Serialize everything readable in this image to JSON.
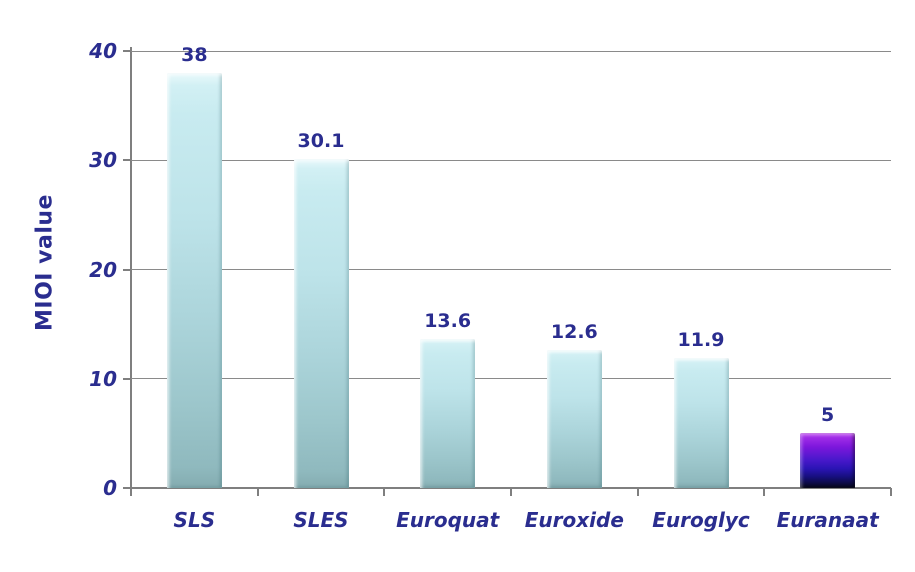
{
  "chart_data": {
    "type": "bar",
    "title": "",
    "xlabel": "",
    "ylabel": "MIOI value",
    "categories": [
      "SLS",
      "SLES",
      "Euroquat",
      "Euroxide",
      "Euroglyc",
      "Euranaat"
    ],
    "values": [
      38,
      30.1,
      13.6,
      12.6,
      11.9,
      5
    ],
    "value_labels": [
      "38",
      "30.1",
      "13.6",
      "12.6",
      "11.9",
      "5"
    ],
    "bar_styles": [
      "cyan",
      "cyan",
      "cyan",
      "cyan",
      "cyan",
      "purple"
    ],
    "ylim": [
      0,
      40
    ],
    "yticks": [
      0,
      10,
      20,
      30,
      40
    ],
    "ytick_labels": [
      "0",
      "10",
      "20",
      "30",
      "40"
    ],
    "grid": true,
    "legend_position": "none",
    "colors": {
      "label_navy": "#2a2d8f",
      "gridline": "#8a8a8a",
      "axis": "#7f7f7f",
      "background": "#ffffff",
      "cyan_bar_top": "#cdeef3",
      "cyan_bar_bottom": "#8fb9be",
      "purple_bar_top": "#a32ee8",
      "purple_bar_bottom": "#08081f"
    }
  }
}
